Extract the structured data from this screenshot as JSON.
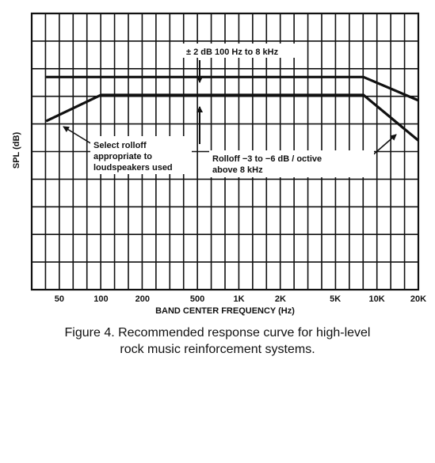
{
  "chart_data": {
    "type": "line",
    "title": "",
    "xlabel": "BAND CENTER FREQUENCY (Hz)",
    "ylabel": "SPL (dB)",
    "x_scale": "log",
    "xlim": [
      31.5,
      20000
    ],
    "ylim": [
      0,
      100
    ],
    "grid": true,
    "x_ticks": [
      {
        "value": 50,
        "label": "50"
      },
      {
        "value": 100,
        "label": "100"
      },
      {
        "value": 200,
        "label": "200"
      },
      {
        "value": 500,
        "label": "500"
      },
      {
        "value": 1000,
        "label": "1K"
      },
      {
        "value": 2000,
        "label": "2K"
      },
      {
        "value": 5000,
        "label": "5K"
      },
      {
        "value": 10000,
        "label": "10K"
      },
      {
        "value": 20000,
        "label": "20K"
      }
    ],
    "series": [
      {
        "x": [
          40,
          8000,
          20000
        ],
        "y": [
          77,
          77,
          68.5
        ]
      },
      {
        "x": [
          40,
          100,
          8000,
          20000
        ],
        "y": [
          61,
          70.5,
          70.5,
          54
        ]
      }
    ],
    "annotations": [
      {
        "id": "tolerance",
        "text": "± 2 dB 100 Hz to 8 kHz"
      },
      {
        "id": "select-rolloff",
        "lines": [
          "Select rolloff",
          "appropriate to",
          "loudspeakers used"
        ]
      },
      {
        "id": "rolloff",
        "lines": [
          "Rolloff  −3 to  −6 dB / octive",
          "above 8 kHz"
        ]
      }
    ]
  },
  "caption": {
    "line1": "Figure 4. Recommended response curve for high-level",
    "line2": "rock music reinforcement systems."
  }
}
